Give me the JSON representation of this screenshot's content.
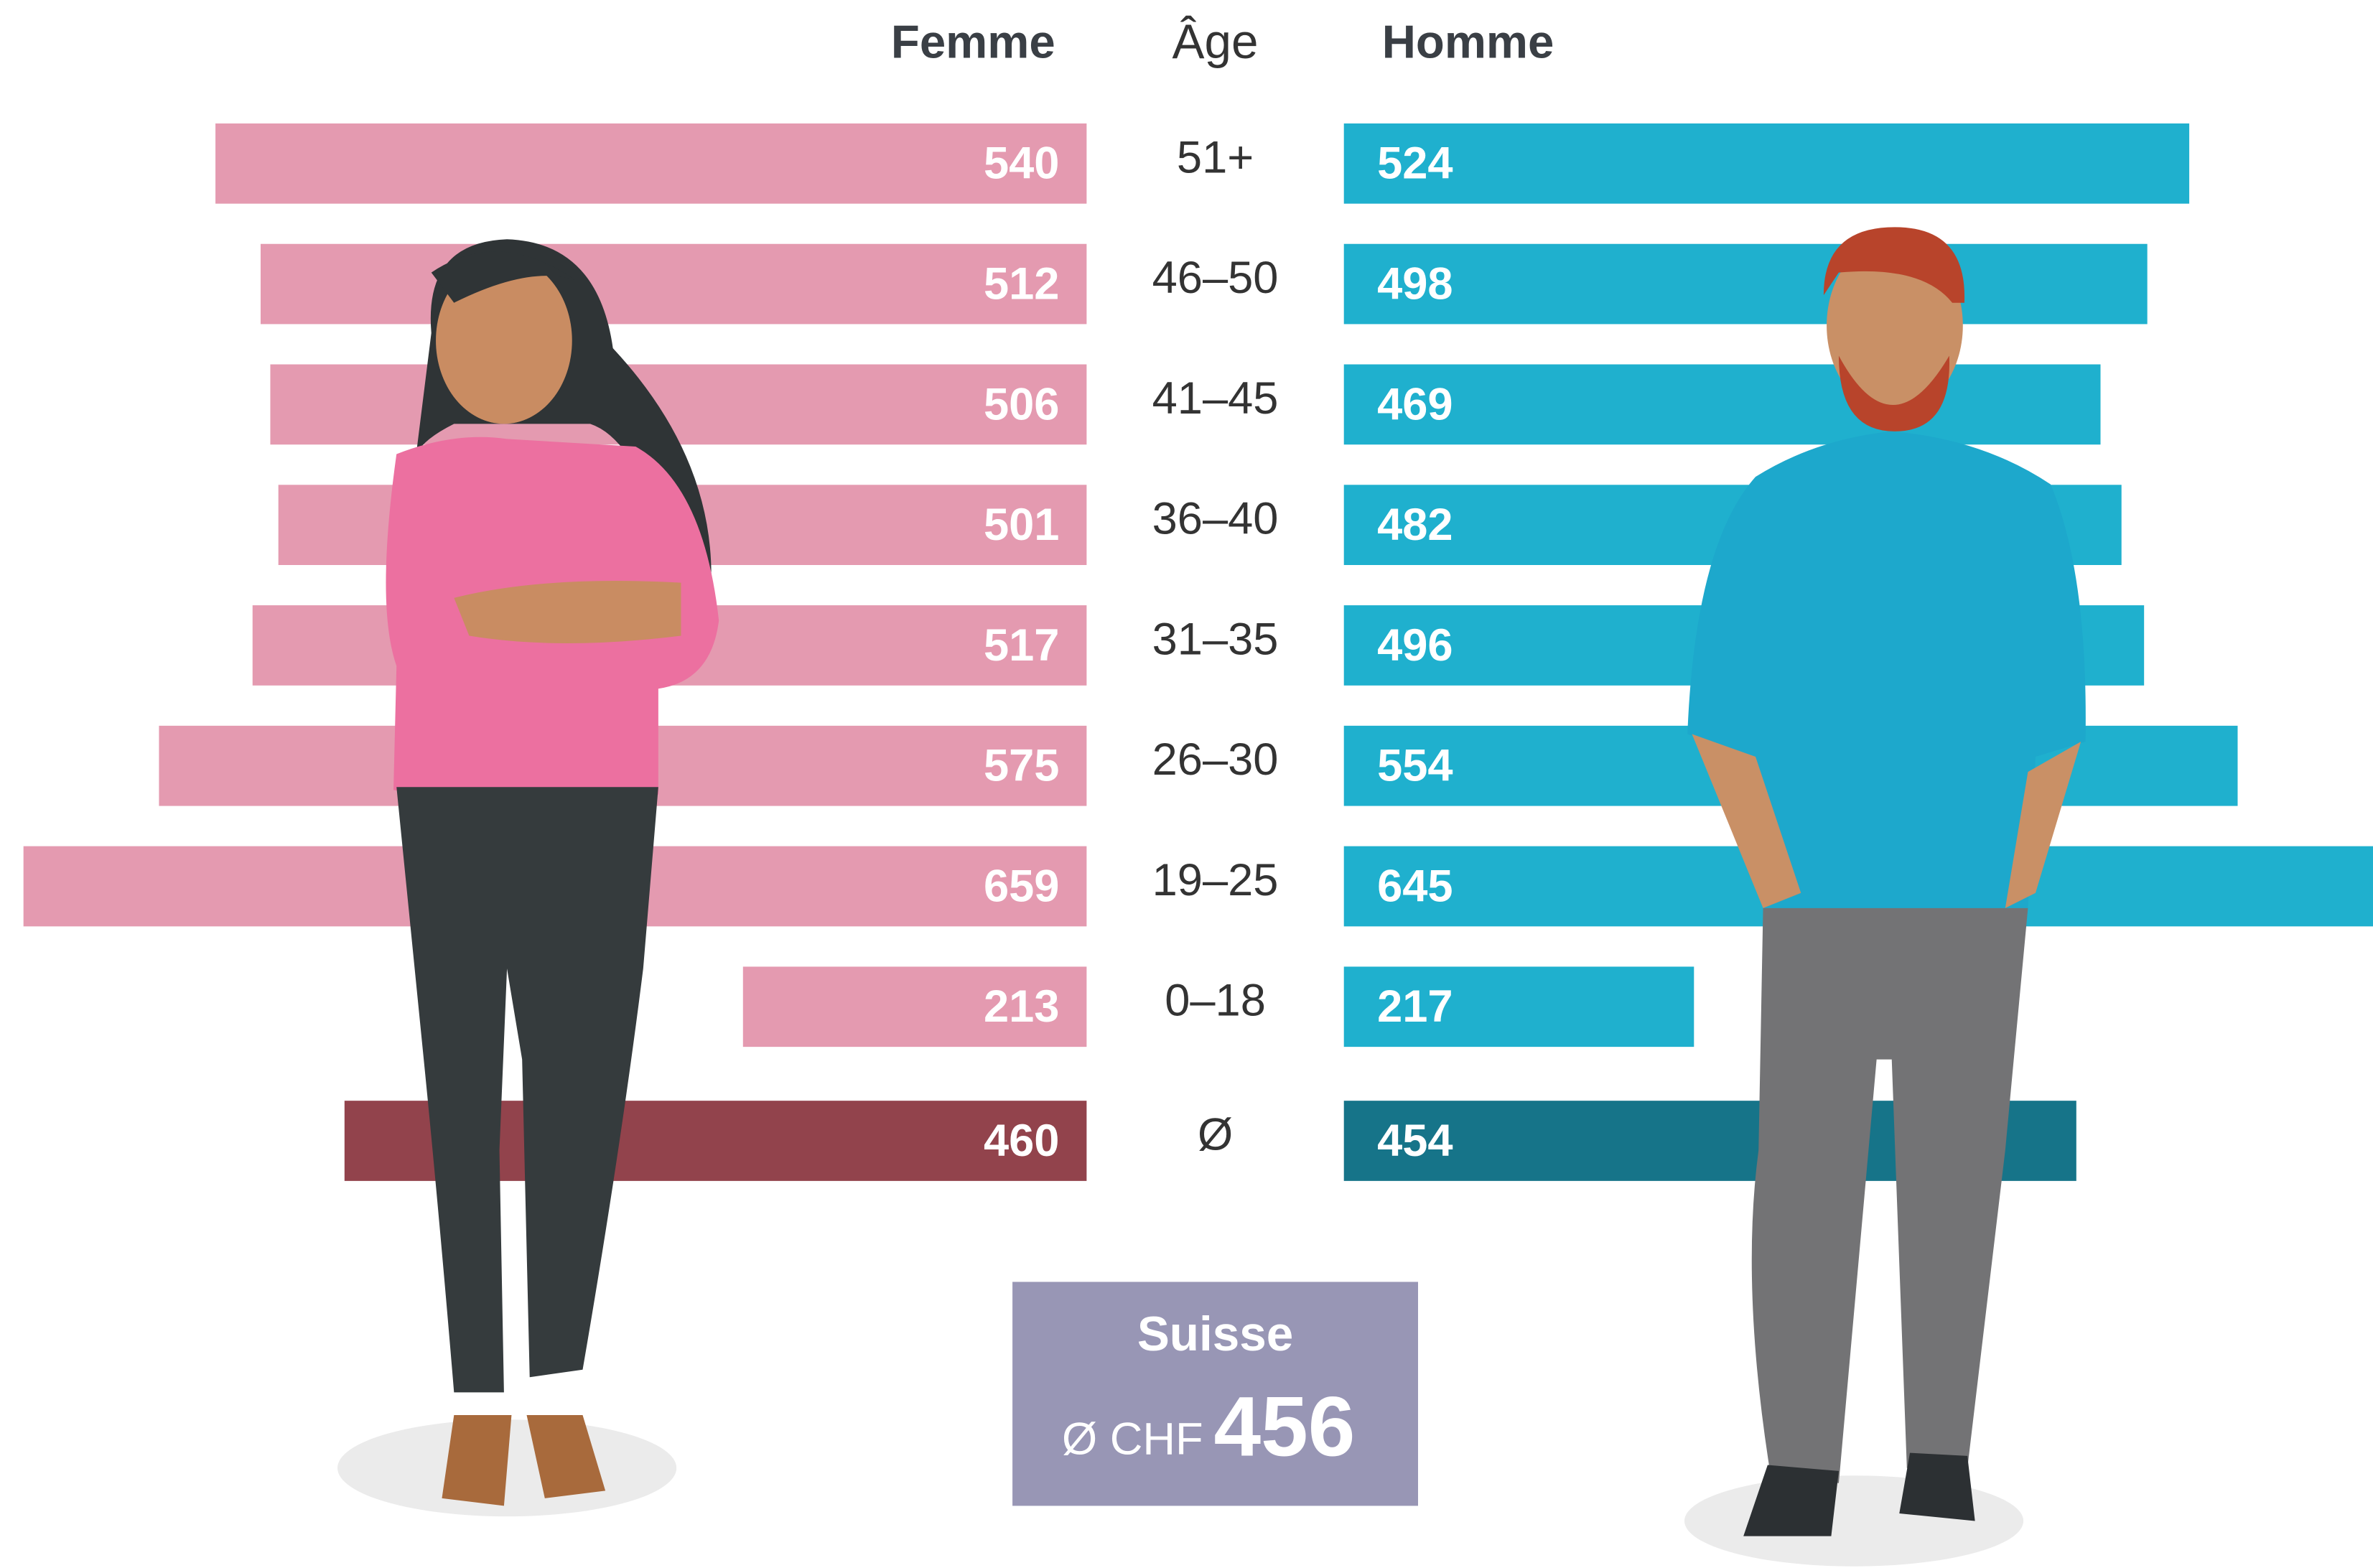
{
  "chart_data": {
    "type": "butterfly",
    "category_title": "Âge",
    "categories": [
      "51+",
      "46–50",
      "41–45",
      "36–40",
      "31–35",
      "26–30",
      "19–25",
      "0–18",
      "Ø"
    ],
    "series": [
      {
        "name": "Femme",
        "color": "#e49ab0",
        "average_color": "#92434c",
        "values": [
          540,
          512,
          506,
          501,
          517,
          575,
          659,
          213,
          460
        ]
      },
      {
        "name": "Homme",
        "color": "#1fb0ce",
        "average_color": "#167489",
        "values": [
          524,
          498,
          469,
          482,
          496,
          554,
          645,
          217,
          454
        ]
      }
    ],
    "summary": {
      "title": "Suisse",
      "prefix": "Ø CHF",
      "value": 456
    }
  }
}
